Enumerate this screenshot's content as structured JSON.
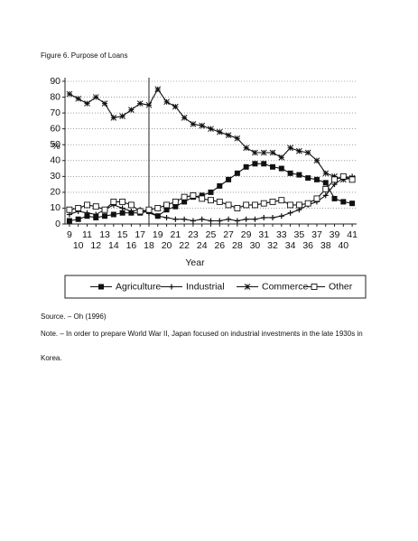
{
  "caption": "Figure 6. Purpose of Loans",
  "source": "Source. – Oh (1996)",
  "note": [
    "Note. – In order to prepare World War II, Japan focused on industrial investments in the late 1930s in",
    "Korea."
  ],
  "chart_data": {
    "type": "line",
    "ylabel": "%",
    "xlabel": "Year",
    "x": [
      9,
      10,
      11,
      12,
      13,
      14,
      15,
      16,
      17,
      18,
      19,
      20,
      21,
      22,
      23,
      24,
      25,
      26,
      27,
      28,
      29,
      30,
      31,
      32,
      33,
      34,
      35,
      36,
      37,
      38,
      39,
      40,
      41
    ],
    "xlim": [
      8.5,
      41.5
    ],
    "xticks": [
      9,
      10,
      11,
      12,
      13,
      14,
      15,
      16,
      17,
      18,
      19,
      20,
      21,
      22,
      23,
      24,
      25,
      26,
      27,
      28,
      29,
      30,
      31,
      32,
      33,
      34,
      35,
      36,
      37,
      38,
      39,
      40,
      41
    ],
    "ylim": [
      0,
      90
    ],
    "yticks": [
      0,
      10,
      20,
      30,
      40,
      50,
      60,
      70,
      80,
      90
    ],
    "grid": true,
    "vline": 18,
    "series": [
      {
        "name": "Agriculture",
        "color": "#111111",
        "marker": "filled-square",
        "values": [
          2,
          3,
          5,
          4,
          5,
          6,
          7,
          7,
          7,
          8,
          5,
          9,
          11,
          14,
          17,
          18,
          20,
          24,
          28,
          32,
          36,
          38,
          38,
          36,
          35,
          32,
          31,
          29,
          28,
          26,
          16,
          14,
          13
        ]
      },
      {
        "name": "Industrial",
        "color": "#111111",
        "marker": "plus",
        "values": [
          6,
          8,
          7,
          6,
          9,
          12,
          10,
          8,
          9,
          7,
          5,
          4,
          3,
          3,
          2,
          3,
          2,
          2,
          3,
          2,
          3,
          3,
          4,
          4,
          5,
          7,
          9,
          12,
          14,
          18,
          25,
          29,
          30
        ]
      },
      {
        "name": "Commerce",
        "color": "#111111",
        "marker": "asterisk",
        "values": [
          82,
          79,
          76,
          80,
          76,
          67,
          68,
          72,
          76,
          75,
          85,
          77,
          74,
          67,
          63,
          62,
          60,
          58,
          56,
          54,
          48,
          45,
          45,
          45,
          42,
          48,
          46,
          45,
          40,
          32,
          30,
          28,
          29
        ]
      },
      {
        "name": "Other",
        "color": "#111111",
        "marker": "open-square",
        "values": [
          9,
          10,
          12,
          11,
          9,
          14,
          14,
          12,
          8,
          9,
          10,
          12,
          14,
          17,
          18,
          16,
          15,
          14,
          12,
          10,
          12,
          12,
          13,
          14,
          15,
          12,
          12,
          13,
          16,
          22,
          28,
          30,
          28
        ]
      }
    ]
  }
}
